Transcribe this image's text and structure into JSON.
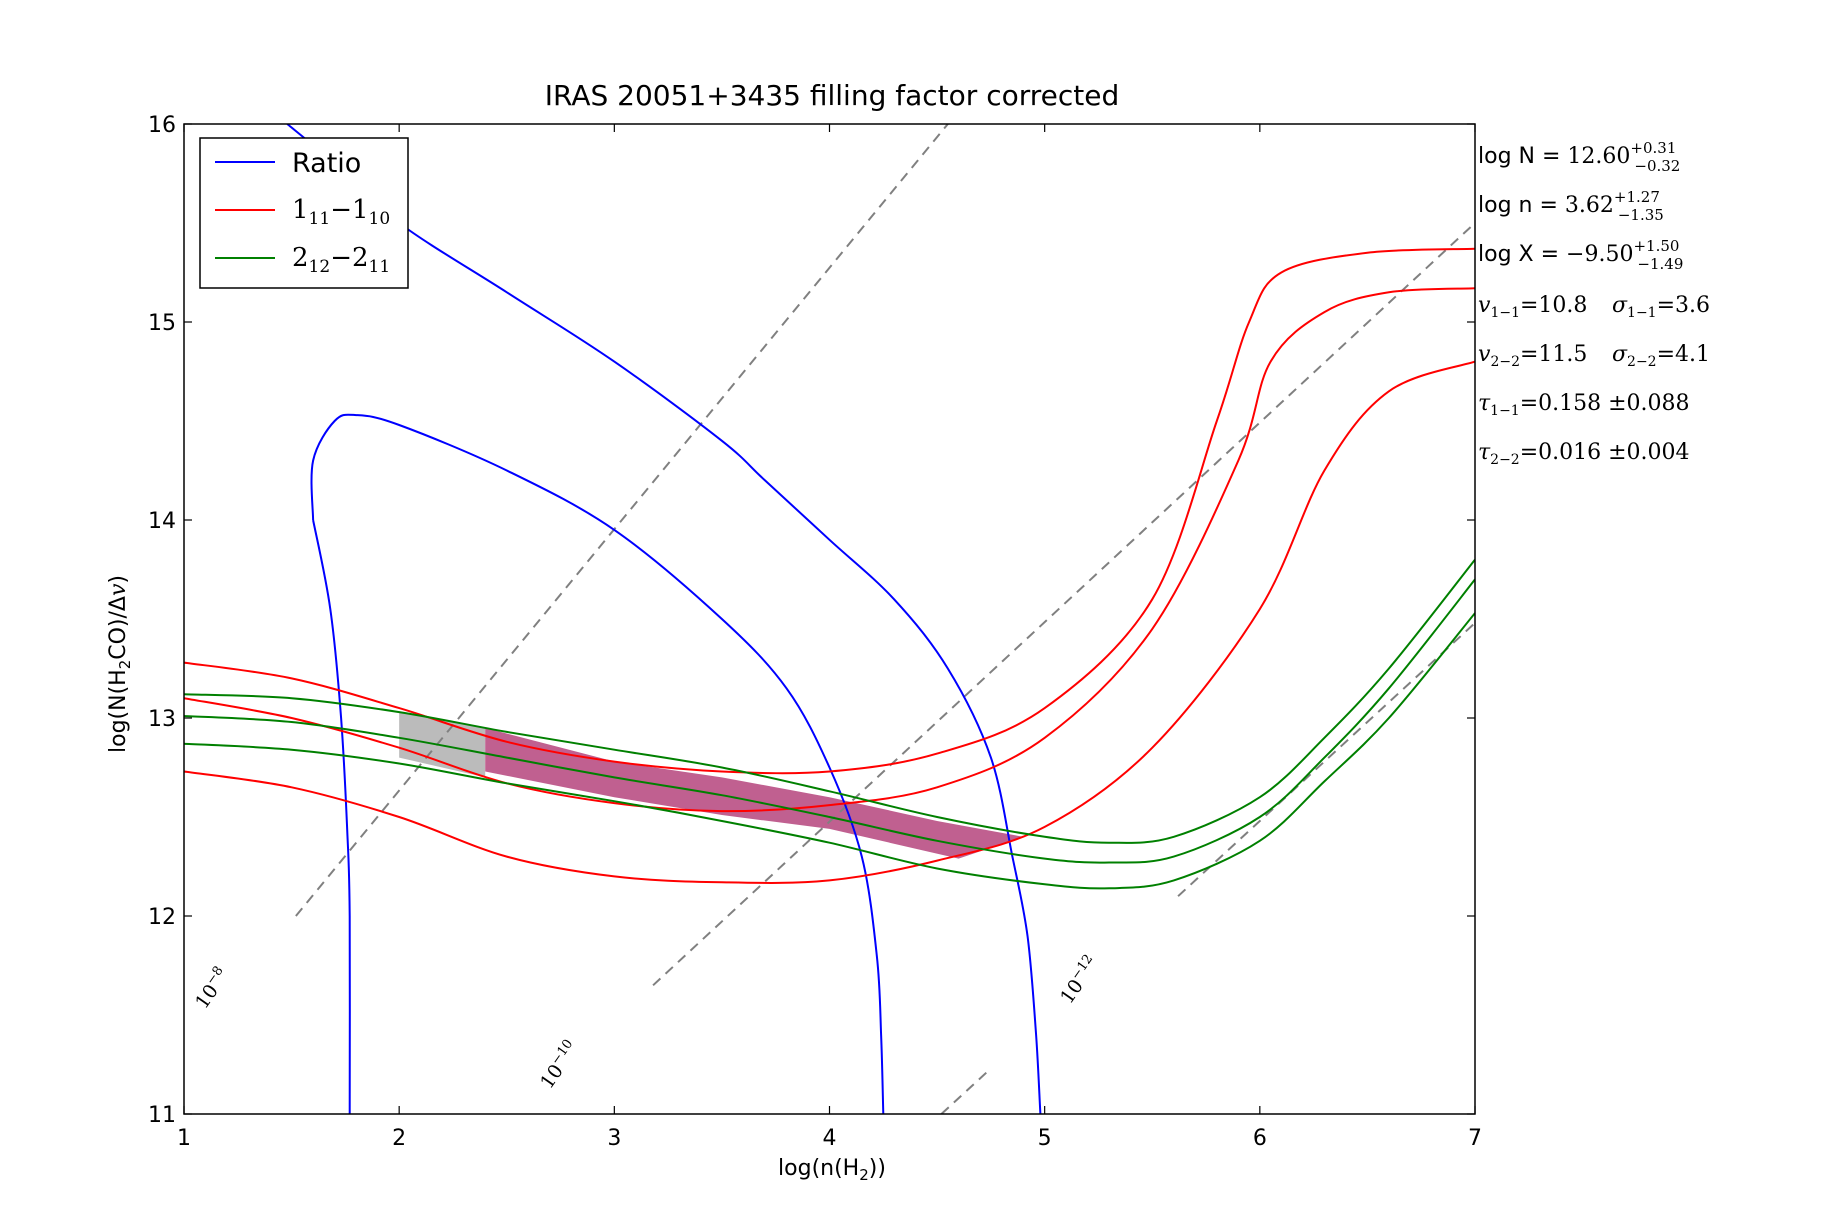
{
  "chart_data": {
    "type": "line",
    "title": "IRAS 20051+3435 filling factor corrected",
    "xlabel": "log(n(H₂))",
    "ylabel": "log(N(H₂CO)/Δv)",
    "xlim": [
      1,
      7
    ],
    "ylim": [
      11,
      16
    ],
    "xticks": [
      1,
      2,
      3,
      4,
      5,
      6,
      7
    ],
    "yticks": [
      11,
      12,
      13,
      14,
      15,
      16
    ],
    "grid": false,
    "legend_position": "top-left",
    "legend": [
      {
        "label": "Ratio",
        "color": "#0000ff"
      },
      {
        "label": "1₁₁−1₁₀",
        "color": "#ff0000"
      },
      {
        "label": "2₁₂−2₁₁",
        "color": "#008000"
      }
    ],
    "series": [
      {
        "name": "Ratio",
        "color": "#0000ff",
        "points": [
          [
            1.48,
            16.0
          ],
          [
            1.7,
            15.8
          ],
          [
            2.0,
            15.5
          ],
          [
            2.5,
            15.15
          ],
          [
            3.0,
            14.8
          ],
          [
            3.5,
            14.4
          ],
          [
            3.7,
            14.2
          ],
          [
            4.0,
            13.9
          ],
          [
            4.3,
            13.6
          ],
          [
            4.55,
            13.25
          ],
          [
            4.75,
            12.8
          ],
          [
            4.85,
            12.3
          ],
          [
            4.92,
            11.9
          ],
          [
            4.96,
            11.4
          ],
          [
            4.98,
            11.0
          ]
        ]
      },
      {
        "name": "Ratio",
        "color": "#0000ff",
        "points": [
          [
            1.6,
            14.0
          ],
          [
            1.6,
            14.3
          ],
          [
            1.7,
            14.5
          ],
          [
            1.8,
            14.53
          ],
          [
            2.0,
            14.48
          ],
          [
            2.5,
            14.25
          ],
          [
            3.0,
            13.95
          ],
          [
            3.5,
            13.5
          ],
          [
            3.8,
            13.15
          ],
          [
            4.0,
            12.75
          ],
          [
            4.15,
            12.3
          ],
          [
            4.22,
            11.8
          ],
          [
            4.24,
            11.4
          ],
          [
            4.25,
            11.0
          ]
        ]
      },
      {
        "name": "Ratio",
        "color": "#0000ff",
        "points": [
          [
            1.6,
            14.0
          ],
          [
            1.68,
            13.55
          ],
          [
            1.73,
            13.0
          ],
          [
            1.76,
            12.4
          ],
          [
            1.77,
            12.0
          ],
          [
            1.77,
            11.0
          ]
        ]
      },
      {
        "name": "1₁₁−1₁₀",
        "color": "#ff0000",
        "points": [
          [
            1.0,
            13.28
          ],
          [
            1.5,
            13.2
          ],
          [
            2.0,
            13.05
          ],
          [
            2.5,
            12.88
          ],
          [
            3.0,
            12.78
          ],
          [
            3.5,
            12.73
          ],
          [
            4.0,
            12.73
          ],
          [
            4.5,
            12.82
          ],
          [
            5.0,
            13.05
          ],
          [
            5.5,
            13.6
          ],
          [
            5.8,
            14.5
          ],
          [
            5.95,
            15.0
          ],
          [
            6.1,
            15.25
          ],
          [
            6.5,
            15.35
          ],
          [
            7.0,
            15.37
          ]
        ]
      },
      {
        "name": "1₁₁−1₁₀",
        "color": "#ff0000",
        "points": [
          [
            1.0,
            13.1
          ],
          [
            1.5,
            13.0
          ],
          [
            2.0,
            12.85
          ],
          [
            2.5,
            12.67
          ],
          [
            3.0,
            12.57
          ],
          [
            3.5,
            12.53
          ],
          [
            4.0,
            12.56
          ],
          [
            4.5,
            12.65
          ],
          [
            5.0,
            12.9
          ],
          [
            5.5,
            13.45
          ],
          [
            5.9,
            14.3
          ],
          [
            6.05,
            14.8
          ],
          [
            6.3,
            15.05
          ],
          [
            6.6,
            15.15
          ],
          [
            7.0,
            15.17
          ]
        ]
      },
      {
        "name": "1₁₁−1₁₀",
        "color": "#ff0000",
        "points": [
          [
            1.0,
            12.73
          ],
          [
            1.5,
            12.65
          ],
          [
            2.0,
            12.5
          ],
          [
            2.5,
            12.3
          ],
          [
            3.0,
            12.2
          ],
          [
            3.5,
            12.17
          ],
          [
            4.0,
            12.18
          ],
          [
            4.5,
            12.28
          ],
          [
            5.0,
            12.45
          ],
          [
            5.5,
            12.85
          ],
          [
            6.0,
            13.55
          ],
          [
            6.3,
            14.25
          ],
          [
            6.6,
            14.65
          ],
          [
            7.0,
            14.8
          ]
        ]
      },
      {
        "name": "2₁₂−2₁₁",
        "color": "#008000",
        "points": [
          [
            1.0,
            13.12
          ],
          [
            1.5,
            13.1
          ],
          [
            2.0,
            13.03
          ],
          [
            2.5,
            12.93
          ],
          [
            3.0,
            12.84
          ],
          [
            3.5,
            12.75
          ],
          [
            4.0,
            12.63
          ],
          [
            4.5,
            12.5
          ],
          [
            5.0,
            12.4
          ],
          [
            5.3,
            12.37
          ],
          [
            5.6,
            12.4
          ],
          [
            6.0,
            12.6
          ],
          [
            6.3,
            12.9
          ],
          [
            6.6,
            13.25
          ],
          [
            7.0,
            13.8
          ]
        ]
      },
      {
        "name": "2₁₂−2₁₁",
        "color": "#008000",
        "points": [
          [
            1.0,
            13.01
          ],
          [
            1.5,
            12.98
          ],
          [
            2.0,
            12.9
          ],
          [
            2.5,
            12.8
          ],
          [
            3.0,
            12.7
          ],
          [
            3.5,
            12.61
          ],
          [
            4.0,
            12.5
          ],
          [
            4.5,
            12.38
          ],
          [
            5.0,
            12.29
          ],
          [
            5.3,
            12.27
          ],
          [
            5.6,
            12.3
          ],
          [
            6.0,
            12.5
          ],
          [
            6.3,
            12.8
          ],
          [
            6.6,
            13.15
          ],
          [
            7.0,
            13.7
          ]
        ]
      },
      {
        "name": "2₁₂−2₁₁",
        "color": "#008000",
        "points": [
          [
            1.0,
            12.87
          ],
          [
            1.5,
            12.84
          ],
          [
            2.0,
            12.77
          ],
          [
            2.5,
            12.67
          ],
          [
            3.0,
            12.58
          ],
          [
            3.5,
            12.48
          ],
          [
            4.0,
            12.37
          ],
          [
            4.5,
            12.24
          ],
          [
            5.0,
            12.16
          ],
          [
            5.3,
            12.14
          ],
          [
            5.6,
            12.18
          ],
          [
            6.0,
            12.38
          ],
          [
            6.3,
            12.68
          ],
          [
            6.6,
            13.0
          ],
          [
            7.0,
            13.53
          ]
        ]
      }
    ],
    "shaded_regions": [
      {
        "name": "ratio-constraint",
        "color": "#bbbbbb",
        "points": [
          [
            2.0,
            13.03
          ],
          [
            2.4,
            12.95
          ],
          [
            2.4,
            12.7
          ],
          [
            2.0,
            12.8
          ]
        ]
      },
      {
        "name": "combined-constraint",
        "color": "#c06090",
        "points": [
          [
            2.4,
            12.95
          ],
          [
            3.0,
            12.78
          ],
          [
            3.5,
            12.7
          ],
          [
            4.0,
            12.6
          ],
          [
            4.5,
            12.48
          ],
          [
            4.9,
            12.4
          ],
          [
            4.6,
            12.29
          ],
          [
            4.0,
            12.44
          ],
          [
            3.5,
            12.51
          ],
          [
            3.0,
            12.6
          ],
          [
            2.4,
            12.73
          ]
        ]
      }
    ],
    "abundance_lines": [
      {
        "label": "10⁻⁸",
        "exponent": "−8",
        "points": [
          [
            1.52,
            12.0
          ],
          [
            4.55,
            16.0
          ]
        ]
      },
      {
        "label": "10⁻¹⁰",
        "exponent": "−10",
        "points": [
          [
            3.18,
            11.65
          ],
          [
            7.0,
            15.5
          ]
        ]
      },
      {
        "label": "10⁻¹²",
        "exponent": "−12",
        "points": [
          [
            4.52,
            11.0
          ],
          [
            4.75,
            11.23
          ]
        ]
      },
      {
        "label": "10⁻¹²",
        "exponent": "−12",
        "points": [
          [
            5.62,
            12.1
          ],
          [
            7.0,
            13.48
          ]
        ]
      }
    ],
    "annotations": {
      "logN": {
        "prefix": "log N = ",
        "value": "12.60",
        "upper": "+0.31",
        "lower": "−0.32"
      },
      "logn": {
        "prefix": "log n = ",
        "value": "3.62",
        "upper": "+1.27",
        "lower": "−1.35"
      },
      "logX": {
        "prefix": "log X = ",
        "value": "−9.50",
        "upper": "+1.50",
        "lower": "−1.49"
      },
      "v11": {
        "sym": "v",
        "sub": "1−1",
        "val": "=10.8"
      },
      "s11": {
        "sym": "σ",
        "sub": "1−1",
        "val": "=3.6"
      },
      "v22": {
        "sym": "v",
        "sub": "2−2",
        "val": "=11.5"
      },
      "s22": {
        "sym": "σ",
        "sub": "2−2",
        "val": "=4.1"
      },
      "tau11": {
        "sym": "τ",
        "sub": "1−1",
        "val": "=0.158 ±0.088"
      },
      "tau22": {
        "sym": "τ",
        "sub": "2−2",
        "val": "=0.016 ±0.004"
      }
    }
  }
}
